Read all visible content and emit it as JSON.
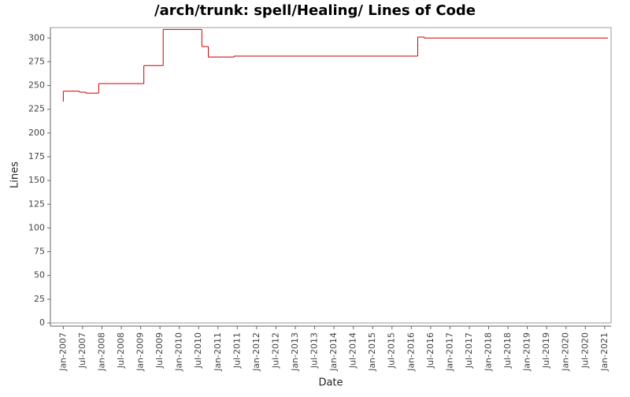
{
  "chart_data": {
    "type": "step",
    "title": "/arch/trunk: spell/Healing/ Lines of Code",
    "x_label": "Date",
    "y_label": "Lines",
    "x": [
      "2007-01",
      "2007-01",
      "2007-06",
      "2007-08",
      "2007-12",
      "2009-02",
      "2009-08",
      "2009-08",
      "2010-08",
      "2010-10",
      "2011-06",
      "2016-03",
      "2016-05",
      "2021-02"
    ],
    "values": [
      233,
      244,
      243,
      242,
      252,
      271,
      307,
      309,
      291,
      280,
      281,
      301,
      300,
      300
    ],
    "color": "#cc0000",
    "xlim": [
      "2006-09",
      "2021-03"
    ],
    "xticks": [
      {
        "value": "2007-01",
        "label": "Jan-2007"
      },
      {
        "value": "2007-07",
        "label": "Jul-2007"
      },
      {
        "value": "2008-01",
        "label": "Jan-2008"
      },
      {
        "value": "2008-07",
        "label": "Jul-2008"
      },
      {
        "value": "2009-01",
        "label": "Jan-2009"
      },
      {
        "value": "2009-07",
        "label": "Jul-2009"
      },
      {
        "value": "2010-01",
        "label": "Jan-2010"
      },
      {
        "value": "2010-07",
        "label": "Jul-2010"
      },
      {
        "value": "2011-01",
        "label": "Jan-2011"
      },
      {
        "value": "2011-07",
        "label": "Jul-2011"
      },
      {
        "value": "2012-01",
        "label": "Jan-2012"
      },
      {
        "value": "2012-07",
        "label": "Jul-2012"
      },
      {
        "value": "2013-01",
        "label": "Jan-2013"
      },
      {
        "value": "2013-07",
        "label": "Jul-2013"
      },
      {
        "value": "2014-01",
        "label": "Jan-2014"
      },
      {
        "value": "2014-07",
        "label": "Jul-2014"
      },
      {
        "value": "2015-01",
        "label": "Jan-2015"
      },
      {
        "value": "2015-07",
        "label": "Jul-2015"
      },
      {
        "value": "2016-01",
        "label": "Jan-2016"
      },
      {
        "value": "2016-07",
        "label": "Jul-2016"
      },
      {
        "value": "2017-01",
        "label": "Jan-2017"
      },
      {
        "value": "2017-07",
        "label": "Jul-2017"
      },
      {
        "value": "2018-01",
        "label": "Jan-2018"
      },
      {
        "value": "2018-07",
        "label": "Jul-2018"
      },
      {
        "value": "2019-01",
        "label": "Jan-2019"
      },
      {
        "value": "2019-07",
        "label": "Jul-2019"
      },
      {
        "value": "2020-01",
        "label": "Jan-2020"
      },
      {
        "value": "2020-07",
        "label": "Jul-2020"
      },
      {
        "value": "2021-01",
        "label": "Jan-2021"
      }
    ],
    "ylim": [
      0,
      311
    ],
    "yticks": [
      0,
      25,
      50,
      75,
      100,
      125,
      150,
      175,
      200,
      225,
      250,
      275,
      300
    ],
    "grid": false
  }
}
